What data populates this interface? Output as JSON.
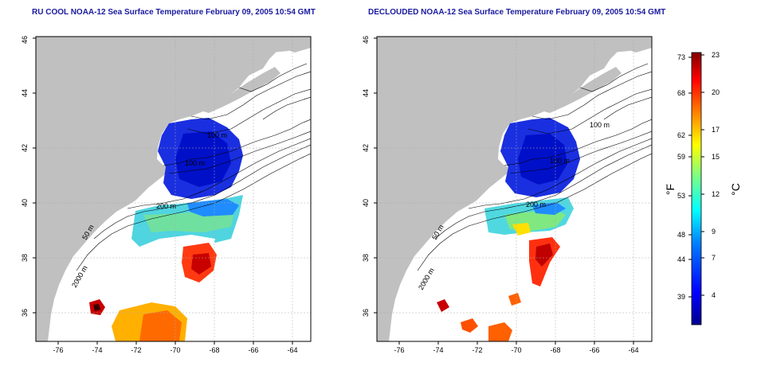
{
  "titles": {
    "left": "RU COOL NOAA-12 Sea Surface Temperature February 09, 2005 10:54 GMT",
    "right": "DECLOUDED NOAA-12 Sea Surface Temperature February 09, 2005 10:54 GMT"
  },
  "map_axes": {
    "x_ticks": [
      "-76",
      "-74",
      "-72",
      "-70",
      "-68",
      "-66",
      "-64"
    ],
    "y_ticks": [
      "36",
      "38",
      "40",
      "42",
      "44",
      "46"
    ]
  },
  "contour_labels": {
    "left": [
      "100 m",
      "100 m",
      "200 m",
      "50 m",
      "2000 m"
    ],
    "right": [
      "100 m",
      "100 m",
      "200 m",
      "50 m",
      "2000 m"
    ]
  },
  "colorbar": {
    "f_ticks": [
      "73",
      "68",
      "62",
      "59",
      "53",
      "48",
      "44",
      "39"
    ],
    "c_ticks": [
      "23",
      "20",
      "17",
      "15",
      "12",
      "9",
      "7",
      "4"
    ],
    "f_label": "°F",
    "c_label": "°C",
    "colors": [
      "#00008f",
      "#0000ff",
      "#0080ff",
      "#00ffff",
      "#80ff80",
      "#ffff00",
      "#ff8000",
      "#ff0000",
      "#800000"
    ]
  },
  "colors": {
    "land": "#c0c0c0",
    "title": "#1a1aa0"
  }
}
